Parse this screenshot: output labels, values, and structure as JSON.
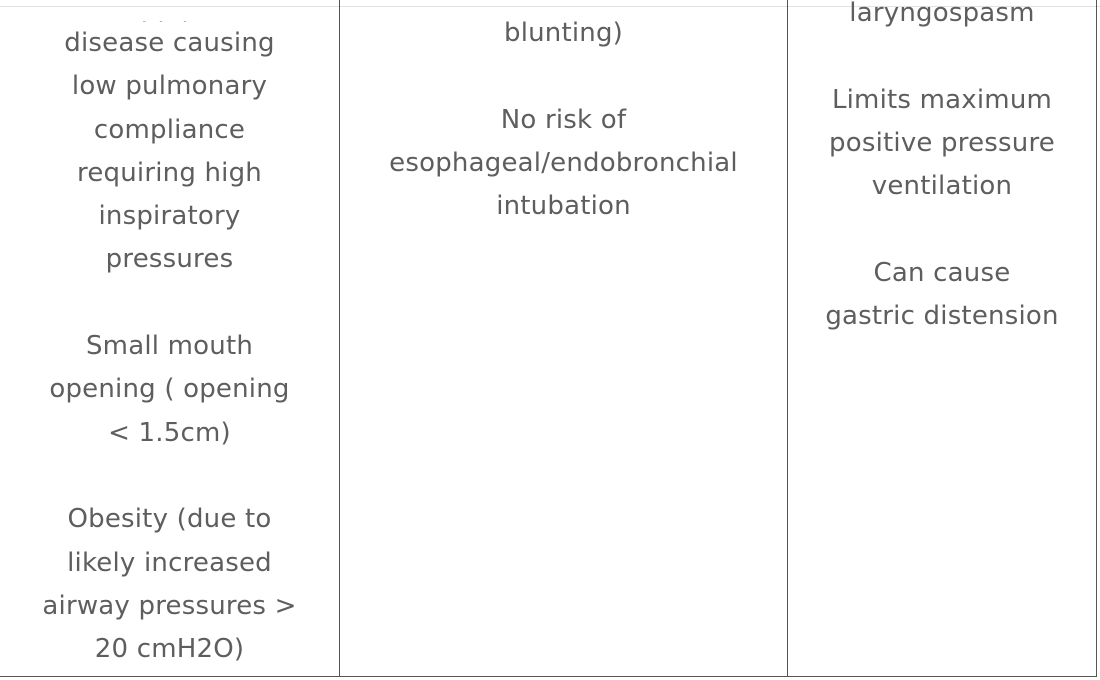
{
  "table": {
    "col1": {
      "cut_line": "high",
      "paragraphs": [
        [
          "disease causing",
          "low pulmonary",
          "compliance",
          "requiring high",
          "inspiratory",
          "pressures"
        ],
        [
          "Small mouth",
          "opening ( opening",
          "< 1.5cm)"
        ],
        [
          "Obesity (due to",
          "likely increased",
          "airway pressures >",
          "20 cmH2O)"
        ]
      ]
    },
    "col2": {
      "paragraphs": [
        [
          "blunting)"
        ],
        [
          "No risk of",
          "esophageal/endobronchial",
          "intubation"
        ]
      ]
    },
    "col3": {
      "paragraphs": [
        [
          "laryngospasm"
        ],
        [
          "Limits maximum",
          "positive pressure",
          "ventilation"
        ],
        [
          "Can cause",
          "gastric distension"
        ]
      ]
    }
  }
}
